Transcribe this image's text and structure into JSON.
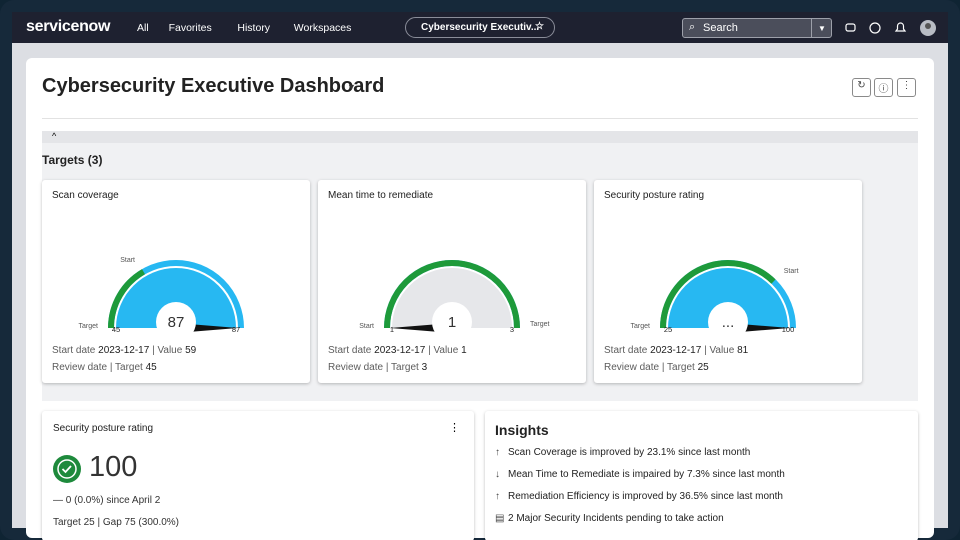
{
  "nav": {
    "brand": "servicenow",
    "links": [
      "All",
      "Favorites",
      "History",
      "Workspaces"
    ],
    "tab": "Cybersecurity Executiv...",
    "search": "Search"
  },
  "header": {
    "title": "Cybersecurity Executive Dashboard"
  },
  "section": {
    "title": "Targets (3)"
  },
  "targets": [
    {
      "title": "Scan coverage",
      "center": "87",
      "min": 45,
      "max": 87,
      "needle": 87,
      "fill": "#27b8f2",
      "start_label": "Start",
      "target_label": "Target",
      "start_date_label": "Start date",
      "start_date": "2023-12-17",
      "value_caption": "| Value",
      "value": 59,
      "review_label": "Review date",
      "target_caption": "| Target",
      "target": 45
    },
    {
      "title": "Mean time to remediate",
      "center": "1",
      "min": 1,
      "max": 3,
      "needle": 1,
      "fill": "#e6e7ea",
      "start_label": "Start",
      "target_label": "Target",
      "start_date_label": "Start date",
      "start_date": "2023-12-17",
      "value_caption": "| Value",
      "value": 1,
      "review_label": "Review date",
      "target_caption": "| Target",
      "target": 3
    },
    {
      "title": "Security posture rating",
      "center": "...",
      "min": 25,
      "max": 100,
      "needle": 100,
      "fill": "#27b8f2",
      "start_label": "Start",
      "target_label": "Target",
      "start_date_label": "Start date",
      "start_date": "2023-12-17",
      "value_caption": "| Value",
      "value": 81,
      "review_label": "Review date",
      "target_caption": "| Target",
      "target": 25
    }
  ],
  "score": {
    "title": "Security posture rating",
    "value": "100",
    "change": "— 0 (0.0%) since April 2",
    "footer": "Target 25 | Gap 75 (300.0%)"
  },
  "insights": {
    "title": "Insights",
    "items": [
      {
        "icon": "↑",
        "text": "Scan Coverage is improved by 23.1% since last month"
      },
      {
        "icon": "↓",
        "text": "Mean Time to Remediate is impaired by 7.3% since last month"
      },
      {
        "icon": "↑",
        "text": "Remediation Efficiency is improved by 36.5% since last month"
      },
      {
        "icon": "▤",
        "text": "2 Major Security Incidents pending to take action"
      }
    ]
  }
}
